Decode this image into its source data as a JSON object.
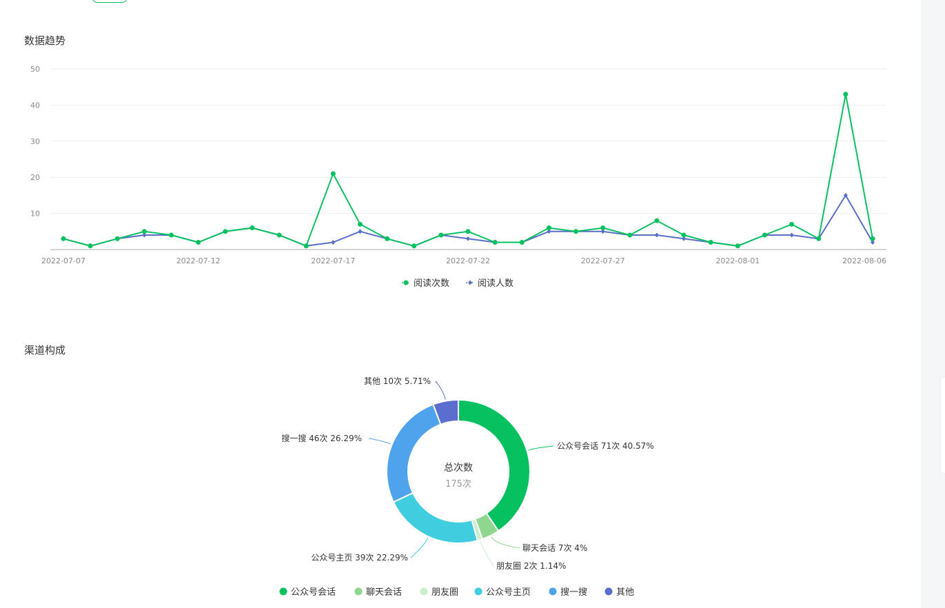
{
  "sections": {
    "trend_title": "数据趋势",
    "channel_title": "渠道构成"
  },
  "colors": {
    "green": "#07c160",
    "purple": "#5b6ec5",
    "axis": "#c6c6c6",
    "grid": "#eeeeee",
    "tick_text": "#888888"
  },
  "chart_data": [
    {
      "type": "line",
      "x": [
        "2022-07-07",
        "2022-07-08",
        "2022-07-09",
        "2022-07-10",
        "2022-07-11",
        "2022-07-12",
        "2022-07-13",
        "2022-07-14",
        "2022-07-15",
        "2022-07-16",
        "2022-07-17",
        "2022-07-18",
        "2022-07-19",
        "2022-07-20",
        "2022-07-21",
        "2022-07-22",
        "2022-07-23",
        "2022-07-24",
        "2022-07-25",
        "2022-07-26",
        "2022-07-27",
        "2022-07-28",
        "2022-07-29",
        "2022-07-30",
        "2022-07-31",
        "2022-08-01",
        "2022-08-02",
        "2022-08-03",
        "2022-08-04",
        "2022-08-05",
        "2022-08-06"
      ],
      "x_tick_labels": [
        "2022-07-07",
        "2022-07-12",
        "2022-07-17",
        "2022-07-22",
        "2022-07-27",
        "2022-08-01",
        "2022-08-06"
      ],
      "y_tick_labels": [
        "50",
        "40",
        "30",
        "20",
        "10"
      ],
      "ylim": [
        0,
        50
      ],
      "grid": true,
      "legend_position": "bottom-center",
      "series": [
        {
          "name": "阅读次数",
          "color": "#07c160",
          "marker": "circle",
          "values": [
            3,
            1,
            3,
            5,
            4,
            2,
            5,
            6,
            4,
            1,
            21,
            7,
            3,
            1,
            4,
            5,
            2,
            2,
            6,
            5,
            6,
            4,
            8,
            4,
            2,
            1,
            4,
            7,
            3,
            43,
            3
          ]
        },
        {
          "name": "阅读人数",
          "color": "#5b6ec5",
          "marker": "diamond",
          "values": [
            3,
            1,
            3,
            4,
            4,
            2,
            5,
            6,
            4,
            1,
            2,
            5,
            3,
            1,
            4,
            3,
            2,
            2,
            5,
            5,
            5,
            4,
            4,
            3,
            2,
            1,
            4,
            4,
            3,
            15,
            2
          ]
        }
      ]
    },
    {
      "type": "pie",
      "donut": true,
      "center_title": "总次数",
      "center_value": "175次",
      "legend_position": "bottom-center",
      "slices": [
        {
          "name": "公众号会话",
          "value": 71,
          "color": "#07c160",
          "label": "公众号会话 71次 40.57%"
        },
        {
          "name": "聊天会话",
          "value": 7,
          "color": "#8fd68f",
          "label": "聊天会话 7次 4%"
        },
        {
          "name": "朋友圈",
          "value": 2,
          "color": "#cdeecd",
          "label": "朋友圈 2次 1.14%"
        },
        {
          "name": "公众号主页",
          "value": 39,
          "color": "#40cde0",
          "label": "公众号主页 39次 22.29%"
        },
        {
          "name": "搜一搜",
          "value": 46,
          "color": "#4ea3ec",
          "label": "搜一搜 46次 26.29%"
        },
        {
          "name": "其他",
          "value": 10,
          "color": "#5b6ed0",
          "label": "其他 10次 5.71%"
        }
      ]
    }
  ]
}
